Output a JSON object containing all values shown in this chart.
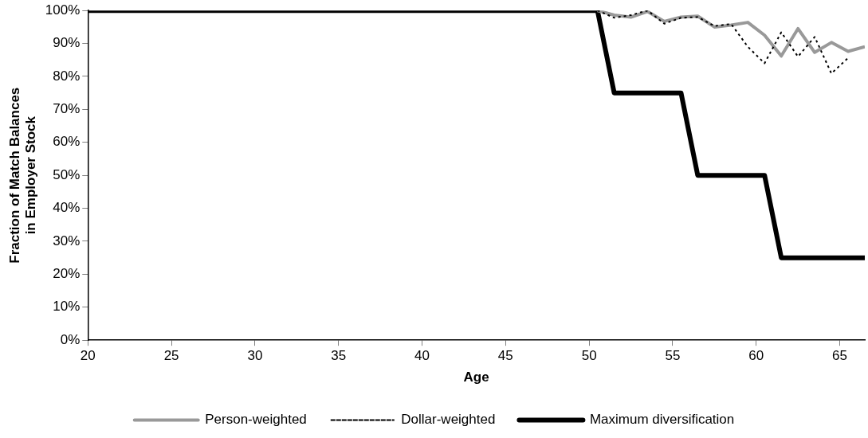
{
  "chart_data": {
    "type": "line",
    "xlabel": "Age",
    "ylabel": "Fraction of Match Balances in Employer Stock",
    "xlim": [
      20,
      66.5
    ],
    "xticks": [
      20,
      25,
      30,
      35,
      40,
      45,
      50,
      55,
      60,
      65
    ],
    "ylim": [
      0,
      100
    ],
    "yticks": [
      {
        "value": 0,
        "label": "0%"
      },
      {
        "value": 10,
        "label": "10%"
      },
      {
        "value": 20,
        "label": "20%"
      },
      {
        "value": 30,
        "label": "30%"
      },
      {
        "value": 40,
        "label": "40%"
      },
      {
        "value": 50,
        "label": "50%"
      },
      {
        "value": 60,
        "label": "60%"
      },
      {
        "value": 70,
        "label": "70%"
      },
      {
        "value": 80,
        "label": "80%"
      },
      {
        "value": 90,
        "label": "90%"
      },
      {
        "value": 100,
        "label": "100%"
      }
    ],
    "grid": false,
    "legend": "bottom",
    "marker": "none",
    "series": [
      {
        "name": "Person-weighted",
        "color": "#999999",
        "line_style": "solid",
        "x": [
          50.5,
          51.5,
          52.5,
          53.5,
          54.5,
          55.5,
          56.5,
          57.5,
          58.5,
          59.5,
          60.5,
          61.5,
          62.5,
          63.5,
          64.5,
          65.5,
          66.5
        ],
        "values": [
          100,
          98.6,
          98,
          99.7,
          96.7,
          98,
          98.3,
          95,
          95.6,
          96.4,
          92.5,
          86.2,
          94.5,
          87.3,
          90.3,
          87.6,
          89
        ]
      },
      {
        "name": "Dollar-weighted",
        "color": "#000000",
        "line_style": "dotted",
        "x": [
          50.5,
          51.5,
          52.5,
          53.5,
          54.5,
          55.5,
          56.5,
          57.5,
          58.5,
          59.5,
          60.5,
          61.5,
          62.5,
          63.5,
          64.5,
          65.5
        ],
        "values": [
          100,
          97.8,
          98.6,
          100,
          96,
          97.8,
          98,
          95.3,
          95.9,
          89,
          84,
          93.4,
          86,
          92,
          80.9,
          85.6
        ]
      },
      {
        "name": "Maximum diversification",
        "color": "#000000",
        "line_style": "solid",
        "x": [
          20,
          50.5,
          51.5,
          55.5,
          56.5,
          60.5,
          61.5,
          66.5
        ],
        "values": [
          100,
          100,
          75,
          75,
          50,
          50,
          25,
          25
        ]
      }
    ]
  }
}
